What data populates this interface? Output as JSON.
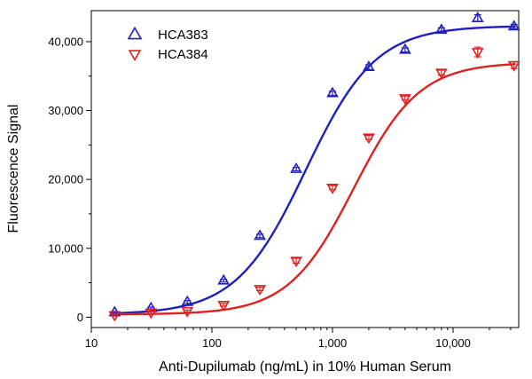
{
  "chart_data": {
    "type": "scatter",
    "xlabel": "Anti-Dupilumab (ng/mL) in 10% Human Serum",
    "ylabel": "Fluorescence Signal",
    "xscale": "log",
    "xlim": [
      10,
      35000
    ],
    "ylim": [
      -1500,
      44500
    ],
    "x_ticks": [
      10,
      100,
      1000,
      10000
    ],
    "x_tick_labels": [
      "10",
      "100",
      "1,000",
      "10,000"
    ],
    "y_ticks": [
      0,
      10000,
      20000,
      30000,
      40000
    ],
    "y_tick_labels": [
      "0",
      "10,000",
      "20,000",
      "30,000",
      "40,000"
    ],
    "grid": false,
    "legend_position": "top-left",
    "series": [
      {
        "name": "HCA383",
        "color": "#1f1fbf",
        "marker": "triangle-up",
        "points": [
          {
            "x": 15.6,
            "y": 700,
            "err": 150
          },
          {
            "x": 31.25,
            "y": 1300,
            "err": 150
          },
          {
            "x": 62.5,
            "y": 2200,
            "err": 200
          },
          {
            "x": 125,
            "y": 5300,
            "err": 200
          },
          {
            "x": 250,
            "y": 11800,
            "err": 250
          },
          {
            "x": 500,
            "y": 21500,
            "err": 250
          },
          {
            "x": 1000,
            "y": 32500,
            "err": 300
          },
          {
            "x": 2000,
            "y": 36300,
            "err": 350
          },
          {
            "x": 4000,
            "y": 38800,
            "err": 300
          },
          {
            "x": 8000,
            "y": 41700,
            "err": 300
          },
          {
            "x": 16000,
            "y": 43400,
            "err": 500
          },
          {
            "x": 32000,
            "y": 42200,
            "err": 300
          }
        ],
        "fit": {
          "bottom": 400,
          "top": 42300,
          "ec50": 600,
          "hill": 1.5
        }
      },
      {
        "name": "HCA384",
        "color": "#e02020",
        "marker": "triangle-down",
        "points": [
          {
            "x": 15.6,
            "y": 300,
            "err": 150
          },
          {
            "x": 31.25,
            "y": 700,
            "err": 150
          },
          {
            "x": 62.5,
            "y": 900,
            "err": 150
          },
          {
            "x": 125,
            "y": 1800,
            "err": 200
          },
          {
            "x": 250,
            "y": 4100,
            "err": 250
          },
          {
            "x": 500,
            "y": 8200,
            "err": 350
          },
          {
            "x": 1000,
            "y": 18800,
            "err": 300
          },
          {
            "x": 2000,
            "y": 26100,
            "err": 300
          },
          {
            "x": 4000,
            "y": 31800,
            "err": 300
          },
          {
            "x": 8000,
            "y": 35500,
            "err": 350
          },
          {
            "x": 16000,
            "y": 38500,
            "err": 700
          },
          {
            "x": 32000,
            "y": 36600,
            "err": 500
          }
        ],
        "fit": {
          "bottom": 400,
          "top": 37000,
          "ec50": 1500,
          "hill": 1.6
        }
      }
    ]
  }
}
